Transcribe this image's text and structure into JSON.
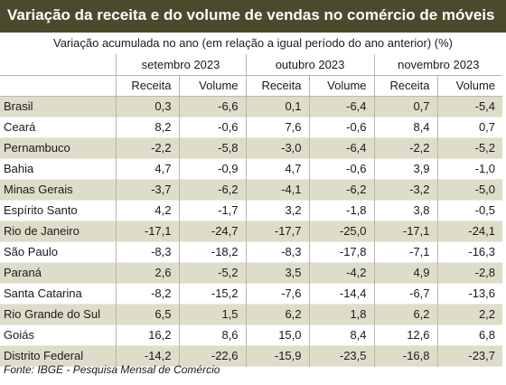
{
  "title": "Variação da receita e do volume de vendas no comércio de móveis",
  "subtitle": "Variação acumulada no ano (em relação a igual período do ano anterior) (%)",
  "periods": [
    "setembro 2023",
    "outubro 2023",
    "novembro 2023"
  ],
  "metrics": [
    "Receita",
    "Volume"
  ],
  "rows": [
    {
      "region": "Brasil",
      "values": [
        "0,3",
        "-6,6",
        "0,1",
        "-6,4",
        "0,7",
        "-5,4"
      ]
    },
    {
      "region": "Ceará",
      "values": [
        "8,2",
        "-0,6",
        "7,6",
        "-0,6",
        "8,4",
        "0,7"
      ]
    },
    {
      "region": "Pernambuco",
      "values": [
        "-2,2",
        "-5,8",
        "-3,0",
        "-6,4",
        "-2,2",
        "-5,2"
      ]
    },
    {
      "region": "Bahia",
      "values": [
        "4,7",
        "-0,9",
        "4,7",
        "-0,6",
        "3,9",
        "-1,0"
      ]
    },
    {
      "region": "Minas Gerais",
      "values": [
        "-3,7",
        "-6,2",
        "-4,1",
        "-6,2",
        "-3,2",
        "-5,0"
      ]
    },
    {
      "region": "Espírito Santo",
      "values": [
        "4,2",
        "-1,7",
        "3,2",
        "-1,8",
        "3,8",
        "-0,5"
      ]
    },
    {
      "region": "Rio de Janeiro",
      "values": [
        "-17,1",
        "-24,7",
        "-17,7",
        "-25,0",
        "-17,1",
        "-24,1"
      ]
    },
    {
      "region": "São Paulo",
      "values": [
        "-8,3",
        "-18,2",
        "-8,3",
        "-17,8",
        "-7,1",
        "-16,3"
      ]
    },
    {
      "region": "Paraná",
      "values": [
        "2,6",
        "-5,2",
        "3,5",
        "-4,2",
        "4,9",
        "-2,8"
      ]
    },
    {
      "region": "Santa Catarina",
      "values": [
        "-8,2",
        "-15,2",
        "-7,6",
        "-14,4",
        "-6,7",
        "-13,6"
      ]
    },
    {
      "region": "Rio Grande do Sul",
      "values": [
        "6,5",
        "1,5",
        "6,2",
        "1,8",
        "6,2",
        "2,2"
      ]
    },
    {
      "region": "Goiás",
      "values": [
        "16,2",
        "8,6",
        "15,0",
        "8,4",
        "12,6",
        "6,8"
      ]
    },
    {
      "region": "Distrito Federal",
      "values": [
        "-14,2",
        "-22,6",
        "-15,9",
        "-23,5",
        "-16,8",
        "-23,7"
      ]
    }
  ],
  "source": "Fonte: IBGE - Pesquisa Mensal de Comércio",
  "colors": {
    "title_bg": "#4b4a2c",
    "row_shade": "#deddc9"
  }
}
